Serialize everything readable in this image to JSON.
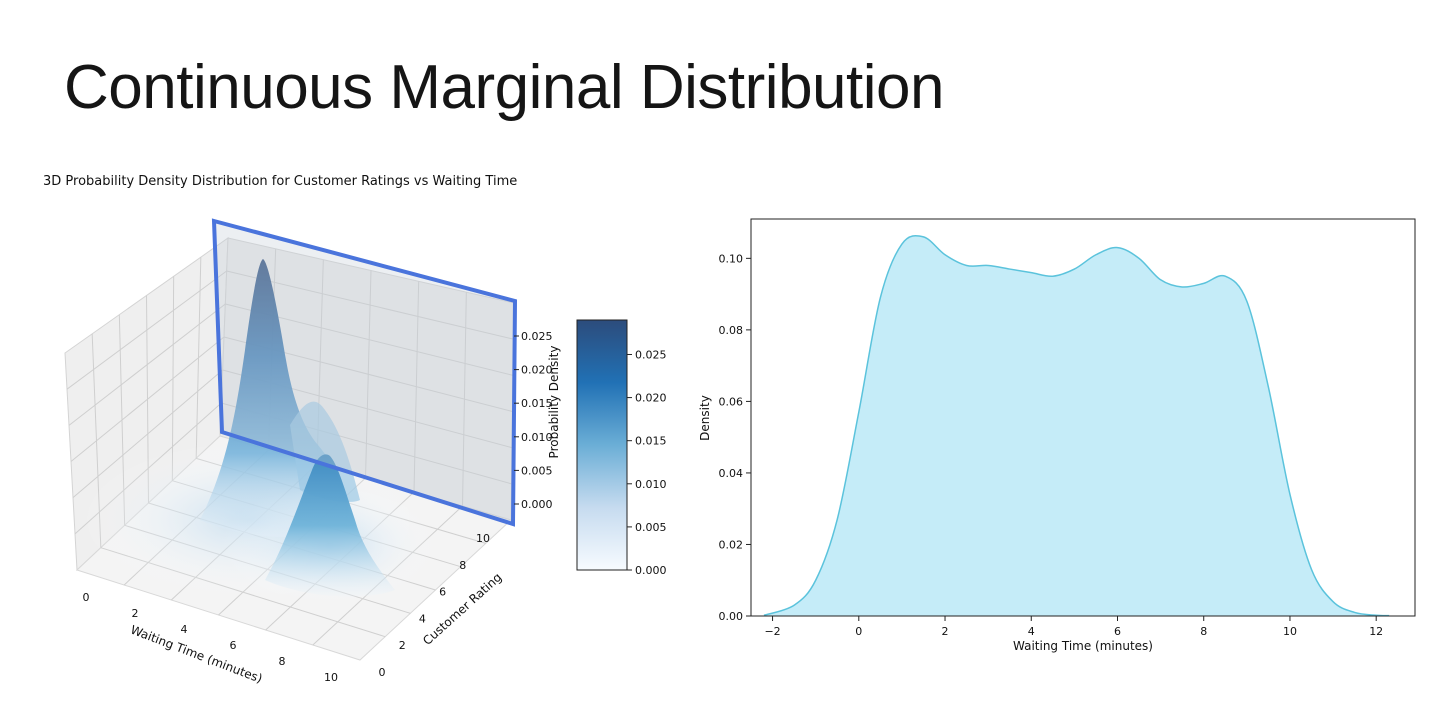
{
  "slide": {
    "title": "Continuous Marginal Distribution"
  },
  "chart_data": [
    {
      "type": "surface3d",
      "title": "3D Probability Density Distribution for Customer Ratings vs Waiting Time",
      "xlabel": "Waiting Time (minutes)",
      "ylabel": "Customer Rating",
      "zlabel": "Probability Density",
      "x_ticks": [
        "0",
        "2",
        "4",
        "6",
        "8",
        "10"
      ],
      "y_ticks": [
        "0",
        "2",
        "4",
        "6",
        "8",
        "10"
      ],
      "z_ticks": [
        "0.000",
        "0.005",
        "0.010",
        "0.015",
        "0.020",
        "0.025"
      ],
      "xlim": [
        0,
        10
      ],
      "ylim": [
        0,
        10
      ],
      "zlim": [
        0,
        0.029
      ],
      "colormap": "Blues",
      "highlight_color": "#4a74dc",
      "peaks": [
        {
          "x": 1.5,
          "y": 8.5,
          "z": 0.029
        },
        {
          "x": 6.0,
          "y": 4.5,
          "z": 0.014
        }
      ],
      "colorbar": {
        "ticks": [
          "0.000",
          "0.005",
          "0.010",
          "0.015",
          "0.020",
          "0.025"
        ],
        "range": [
          0,
          0.029
        ]
      }
    },
    {
      "type": "area",
      "xlabel": "Waiting Time (minutes)",
      "ylabel": "Density",
      "xlim": [
        -2.5,
        12.9
      ],
      "ylim": [
        0,
        0.111
      ],
      "x_ticks": [
        "−2",
        "0",
        "2",
        "4",
        "6",
        "8",
        "10",
        "12"
      ],
      "y_ticks": [
        "0.00",
        "0.02",
        "0.04",
        "0.06",
        "0.08",
        "0.10"
      ],
      "fill_color": "#c5ecf8",
      "line_color": "#5bc3dc",
      "grid": false,
      "x": [
        -2.2,
        -1.5,
        -1.0,
        -0.5,
        0.0,
        0.5,
        1.0,
        1.5,
        2.0,
        2.5,
        3.0,
        3.5,
        4.0,
        4.5,
        5.0,
        5.5,
        6.0,
        6.5,
        7.0,
        7.5,
        8.0,
        8.5,
        9.0,
        9.5,
        10.0,
        10.5,
        11.0,
        11.5,
        12.0,
        12.3
      ],
      "y": [
        0.0002,
        0.003,
        0.01,
        0.027,
        0.057,
        0.089,
        0.104,
        0.106,
        0.101,
        0.098,
        0.098,
        0.097,
        0.096,
        0.095,
        0.097,
        0.101,
        0.103,
        0.1,
        0.094,
        0.092,
        0.093,
        0.095,
        0.088,
        0.064,
        0.034,
        0.013,
        0.004,
        0.001,
        0.0002,
        0.0001
      ]
    }
  ]
}
